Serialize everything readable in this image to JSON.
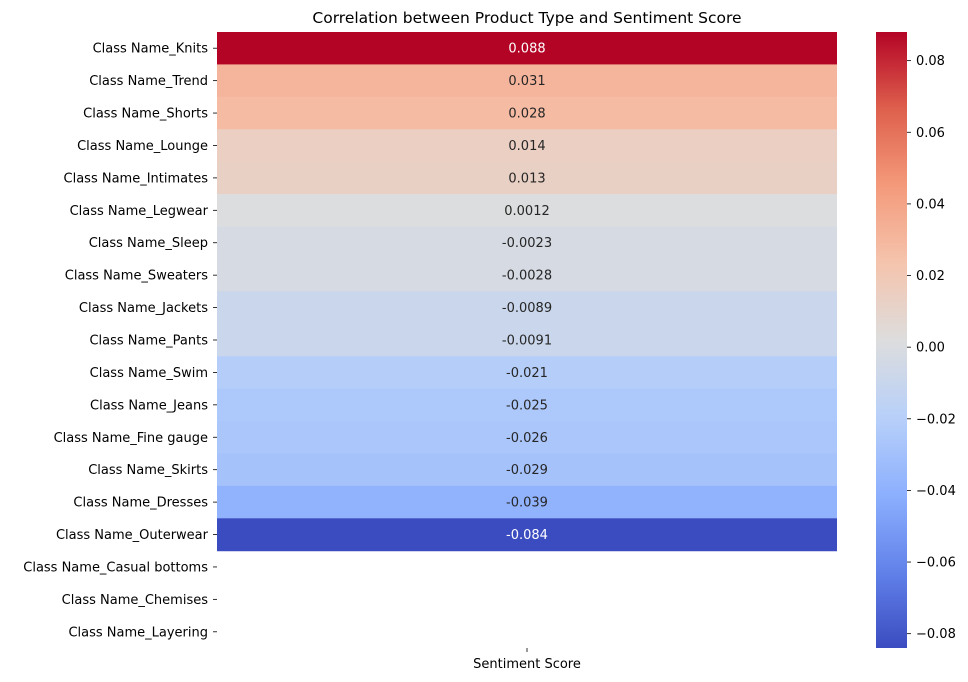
{
  "chart_data": {
    "type": "heatmap",
    "title": "Correlation between Product Type and Sentiment Score",
    "x_categories": [
      "Sentiment Score"
    ],
    "y_categories": [
      "Class Name_Knits",
      "Class Name_Trend",
      "Class Name_Shorts",
      "Class Name_Lounge",
      "Class Name_Intimates",
      "Class Name_Legwear",
      "Class Name_Sleep",
      "Class Name_Sweaters",
      "Class Name_Jackets",
      "Class Name_Pants",
      "Class Name_Swim",
      "Class Name_Jeans",
      "Class Name_Fine gauge",
      "Class Name_Skirts",
      "Class Name_Dresses",
      "Class Name_Outerwear",
      "Class Name_Casual bottoms",
      "Class Name_Chemises",
      "Class Name_Layering"
    ],
    "values": [
      0.088,
      0.031,
      0.028,
      0.014,
      0.013,
      0.0012,
      -0.0023,
      -0.0028,
      -0.0089,
      -0.0091,
      -0.021,
      -0.025,
      -0.026,
      -0.029,
      -0.039,
      -0.084,
      null,
      null,
      null
    ],
    "value_labels": [
      "0.088",
      "0.031",
      "0.028",
      "0.014",
      "0.013",
      "0.0012",
      "-0.0023",
      "-0.0028",
      "-0.0089",
      "-0.0091",
      "-0.021",
      "-0.025",
      "-0.026",
      "-0.029",
      "-0.039",
      "-0.084",
      "",
      "",
      ""
    ],
    "colormap": "coolwarm",
    "colorbar": {
      "range": [
        -0.084,
        0.088
      ],
      "ticks": [
        0.08,
        0.06,
        0.04,
        0.02,
        0.0,
        -0.02,
        -0.04,
        -0.06,
        -0.08
      ],
      "tick_labels": [
        "0.08",
        "0.06",
        "0.04",
        "0.02",
        "0.00",
        "−0.02",
        "−0.04",
        "−0.06",
        "−0.08"
      ],
      "placement": "right"
    }
  }
}
